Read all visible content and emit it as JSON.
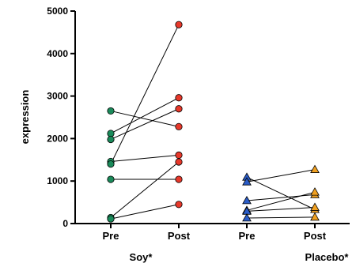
{
  "chart_data": {
    "type": "scatter",
    "ylabel": "expression",
    "ylim": [
      0,
      5000
    ],
    "yticks": [
      0,
      1000,
      2000,
      3000,
      4000,
      5000
    ],
    "categories": [
      "Pre",
      "Post",
      "Pre",
      "Post"
    ],
    "groups": [
      {
        "label": "Soy*",
        "pre_color": "#1a8a5a",
        "post_color": "#e8382a",
        "pre_marker": "circle",
        "post_marker": "circle",
        "pairs": [
          [
            2650,
            2280
          ],
          [
            2120,
            2960
          ],
          [
            1980,
            2700
          ],
          [
            1460,
            1610
          ],
          [
            1400,
            4680
          ],
          [
            1040,
            1040
          ],
          [
            140,
            1450
          ],
          [
            110,
            450
          ]
        ]
      },
      {
        "label": "Placebo*",
        "pre_color": "#2a5cc8",
        "post_color": "#f0a020",
        "pre_marker": "triangle",
        "post_marker": "triangle",
        "pairs": [
          [
            1090,
            330
          ],
          [
            980,
            1270
          ],
          [
            540,
            680
          ],
          [
            310,
            740
          ],
          [
            290,
            380
          ],
          [
            130,
            150
          ]
        ]
      }
    ]
  }
}
